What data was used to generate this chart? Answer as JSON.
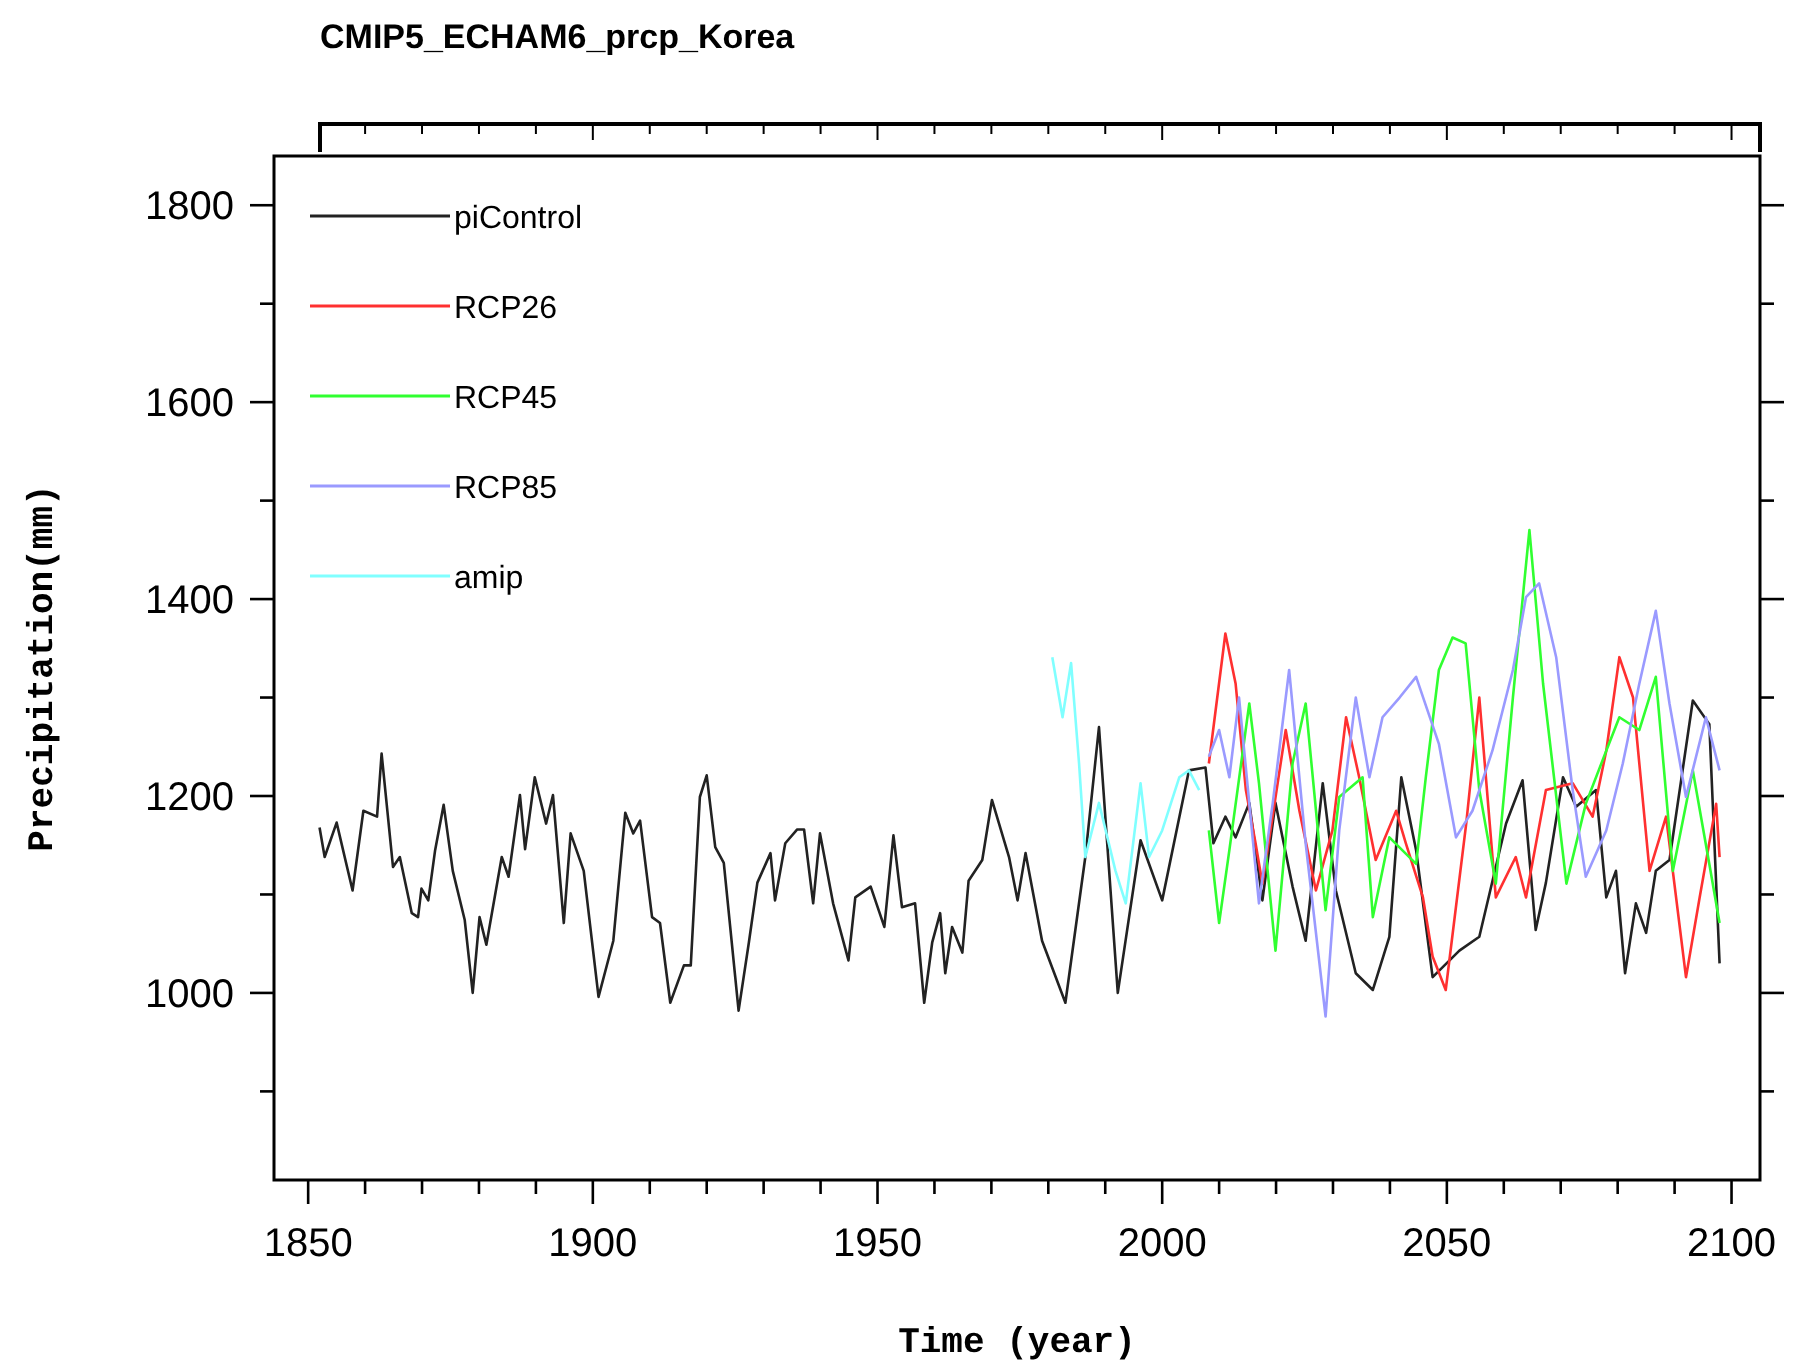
{
  "chart_data": {
    "type": "line",
    "title": "CMIP5_ECHAM6_prcp_Korea",
    "xlabel": "Time (year)",
    "ylabel": "Precipitation(mm)",
    "xlim": [
      1844,
      2105
    ],
    "ylim": [
      810,
      1850
    ],
    "xticks": [
      1850,
      {
        "value": 1860,
        "label": null
      },
      {
        "value": 1870,
        "label": null
      },
      {
        "value": 1880,
        "label": null
      },
      {
        "value": 1890,
        "label": null
      },
      1900,
      {
        "value": 1910,
        "label": null
      },
      {
        "value": 1920,
        "label": null
      },
      {
        "value": 1930,
        "label": null
      },
      {
        "value": 1940,
        "label": null
      },
      1950,
      {
        "value": 1960,
        "label": null
      },
      {
        "value": 1970,
        "label": null
      },
      {
        "value": 1980,
        "label": null
      },
      {
        "value": 1990,
        "label": null
      },
      2000,
      {
        "value": 2010,
        "label": null
      },
      {
        "value": 2020,
        "label": null
      },
      {
        "value": 2030,
        "label": null
      },
      {
        "value": 2040,
        "label": null
      },
      2050,
      {
        "value": 2060,
        "label": null
      },
      {
        "value": 2070,
        "label": null
      },
      {
        "value": 2080,
        "label": null
      },
      {
        "value": 2090,
        "label": null
      },
      2100
    ],
    "yticks": [
      {
        "value": 900,
        "label": null
      },
      1000,
      {
        "value": 1100,
        "label": null
      },
      1200,
      {
        "value": 1300,
        "label": null
      },
      1400,
      {
        "value": 1500,
        "label": null
      },
      1600,
      {
        "value": 1700,
        "label": null
      },
      1800
    ],
    "grid": false,
    "legend": "top left",
    "marker": "none",
    "line_style": "solid",
    "series": [
      {
        "name": "piControl",
        "color": "#222222",
        "x": [
          1852.0,
          1852.9,
          1855.0,
          1857.8,
          1859.7,
          1862.1,
          1862.9,
          1864.9,
          1866.1,
          1868.2,
          1869.3,
          1869.9,
          1871.1,
          1872.3,
          1873.8,
          1875.4,
          1877.5,
          1878.9,
          1880.1,
          1881.3,
          1884.0,
          1885.2,
          1887.2,
          1888.1,
          1889.8,
          1891.8,
          1893.0,
          1894.9,
          1896.1,
          1898.4,
          1901.0,
          1903.6,
          1905.7,
          1907.1,
          1908.3,
          1910.4,
          1911.8,
          1913.6,
          1916.0,
          1917.2,
          1918.8,
          1920.0,
          1921.5,
          1923.0,
          1925.6,
          1927.4,
          1928.9,
          1931.2,
          1932.0,
          1933.8,
          1935.9,
          1937.1,
          1938.7,
          1939.9,
          1942.2,
          1944.9,
          1946.1,
          1948.8,
          1951.2,
          1952.8,
          1954.3,
          1956.6,
          1958.2,
          1959.6,
          1961.0,
          1961.9,
          1963.1,
          1964.9,
          1966.0,
          1968.4,
          1970.1,
          1973.1,
          1974.6,
          1976.0,
          1978.9,
          1983.0,
          1986.5,
          1988.9,
          1992.2,
          1996.2,
          2000.0,
          2004.7,
          2007.6,
          2009.0,
          2011.1,
          2012.9,
          2015.3,
          2017.6,
          2019.9,
          2022.9,
          2025.2,
          2028.2,
          2030.5,
          2034.0,
          2037.0,
          2039.9,
          2042.0,
          2044.6,
          2047.5,
          2052.2,
          2055.7,
          2060.4,
          2063.3,
          2065.6,
          2067.4,
          2070.4,
          2072.7,
          2076.2,
          2078.0,
          2079.7,
          2081.3,
          2083.2,
          2085.0,
          2086.7,
          2089.1,
          2093.2,
          2096.1,
          2097.9
        ],
        "values": [
          1168,
          1138,
          1173,
          1104,
          1185,
          1179,
          1243,
          1128,
          1138,
          1081,
          1077,
          1106,
          1094,
          1145,
          1191,
          1124,
          1074,
          1000,
          1077,
          1049,
          1138,
          1118,
          1201,
          1146,
          1219,
          1172,
          1201,
          1071,
          1162,
          1124,
          996,
          1053,
          1183,
          1162,
          1175,
          1077,
          1071,
          990,
          1028,
          1028,
          1199,
          1221,
          1148,
          1132,
          982,
          1051,
          1112,
          1142,
          1094,
          1152,
          1166,
          1166,
          1091,
          1162,
          1091,
          1033,
          1097,
          1108,
          1067,
          1160,
          1087,
          1091,
          990,
          1051,
          1081,
          1020,
          1067,
          1041,
          1114,
          1135,
          1196,
          1138,
          1094,
          1142,
          1053,
          990,
          1138,
          1270,
          1000,
          1155,
          1094,
          1226,
          1229,
          1152,
          1179,
          1158,
          1193,
          1094,
          1193,
          1108,
          1053,
          1213,
          1104,
          1020,
          1003,
          1057,
          1219,
          1145,
          1016,
          1043,
          1057,
          1172,
          1216,
          1064,
          1112,
          1219,
          1189,
          1206,
          1097,
          1124,
          1020,
          1091,
          1061,
          1124,
          1135,
          1297,
          1273,
          1030
        ]
      },
      {
        "name": "RCP26",
        "color": "#ff3030",
        "x": [
          2008.2,
          2011.1,
          2012.9,
          2014.7,
          2016.4,
          2017.6,
          2021.7,
          2024.1,
          2027.0,
          2029.9,
          2032.3,
          2034.6,
          2037.5,
          2041.1,
          2042.8,
          2045.8,
          2047.5,
          2049.8,
          2053.4,
          2055.7,
          2058.6,
          2062.1,
          2063.9,
          2067.4,
          2072.1,
          2075.6,
          2078.0,
          2080.3,
          2082.7,
          2085.6,
          2088.5,
          2092.0,
          2094.4,
          2097.3,
          2097.9
        ],
        "values": [
          1233,
          1365,
          1314,
          1206,
          1152,
          1111,
          1267,
          1185,
          1104,
          1165,
          1280,
          1219,
          1135,
          1185,
          1152,
          1097,
          1037,
          1003,
          1172,
          1300,
          1097,
          1138,
          1097,
          1206,
          1213,
          1179,
          1246,
          1341,
          1300,
          1124,
          1179,
          1016,
          1097,
          1192,
          1138
        ]
      },
      {
        "name": "RCP45",
        "color": "#30ff30",
        "x": [
          2008.2,
          2010.0,
          2011.8,
          2015.3,
          2017.0,
          2019.9,
          2022.9,
          2025.2,
          2028.7,
          2031.1,
          2035.2,
          2037.0,
          2039.9,
          2044.6,
          2046.3,
          2048.6,
          2051.0,
          2053.3,
          2055.7,
          2058.6,
          2061.6,
          2064.5,
          2066.9,
          2071.0,
          2074.4,
          2078.0,
          2080.3,
          2083.8,
          2086.7,
          2089.7,
          2093.2,
          2096.1,
          2097.9
        ],
        "values": [
          1165,
          1071,
          1145,
          1294,
          1213,
          1043,
          1233,
          1294,
          1084,
          1199,
          1219,
          1077,
          1158,
          1131,
          1219,
          1328,
          1361,
          1355,
          1206,
          1111,
          1300,
          1470,
          1314,
          1111,
          1192,
          1246,
          1280,
          1267,
          1321,
          1124,
          1226,
          1131,
          1071
        ]
      },
      {
        "name": "RCP85",
        "color": "#9a9aff",
        "x": [
          2008.2,
          2010.0,
          2011.8,
          2013.5,
          2017.0,
          2019.4,
          2022.3,
          2025.2,
          2028.7,
          2031.1,
          2034.0,
          2036.4,
          2038.7,
          2041.7,
          2044.6,
          2048.6,
          2051.6,
          2054.5,
          2058.0,
          2061.6,
          2063.9,
          2066.2,
          2069.2,
          2072.1,
          2074.4,
          2078.0,
          2080.9,
          2083.8,
          2086.7,
          2089.1,
          2092.0,
          2095.5,
          2097.9
        ],
        "values": [
          1240,
          1267,
          1219,
          1300,
          1091,
          1192,
          1328,
          1152,
          976,
          1165,
          1300,
          1219,
          1280,
          1300,
          1321,
          1253,
          1158,
          1185,
          1246,
          1328,
          1402,
          1416,
          1341,
          1206,
          1118,
          1165,
          1233,
          1314,
          1388,
          1294,
          1199,
          1280,
          1226
        ]
      },
      {
        "name": "amip",
        "color": "#80ffff",
        "x": [
          1980.7,
          1982.5,
          1984.0,
          1985.4,
          1986.5,
          1988.9,
          1991.8,
          1993.6,
          1996.2,
          1997.7,
          2000.0,
          2003.0,
          2004.7,
          2006.5
        ],
        "values": [
          1341,
          1280,
          1335,
          1233,
          1138,
          1193,
          1124,
          1091,
          1213,
          1138,
          1165,
          1219,
          1226,
          1206
        ]
      }
    ]
  }
}
